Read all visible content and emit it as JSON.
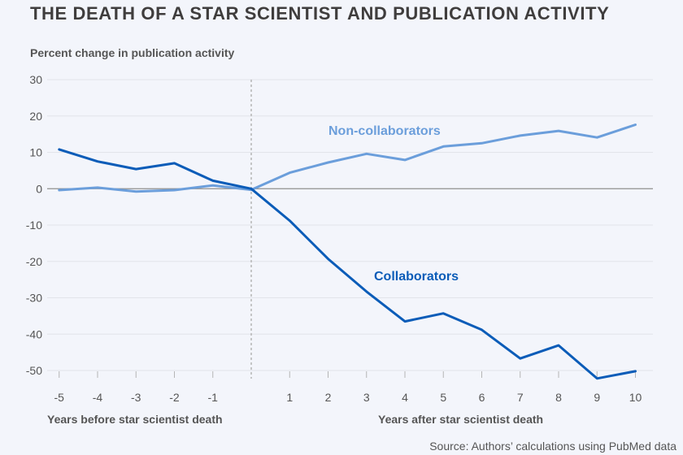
{
  "chart_data": {
    "type": "line",
    "title": "THE DEATH OF A STAR SCIENTIST AND PUBLICATION ACTIVITY",
    "ylabel": "Percent change in publication activity",
    "xlabel_left": "Years before star scientist death",
    "xlabel_right": "Years after star scientist death",
    "source": "Source: Authors’ calculations using PubMed data",
    "ylim": [
      -50,
      30
    ],
    "xlim": [
      -5,
      10
    ],
    "y_ticks": [
      30,
      20,
      10,
      0,
      -10,
      -20,
      -30,
      -40,
      -50
    ],
    "x_ticks": [
      -5,
      -4,
      -3,
      -2,
      -1,
      1,
      2,
      3,
      4,
      5,
      6,
      7,
      8,
      9,
      10
    ],
    "grid": true,
    "reference_line_x": 0,
    "x": [
      -5,
      -4,
      -3,
      -2,
      -1,
      0,
      1,
      2,
      3,
      4,
      5,
      6,
      7,
      8,
      9,
      10
    ],
    "series": [
      {
        "name": "Non-collaborators",
        "color": "#6b9edb",
        "values": [
          -0.4,
          0.3,
          -0.8,
          -0.4,
          0.9,
          -0.3,
          4.4,
          7.2,
          9.6,
          7.9,
          11.6,
          12.5,
          14.6,
          15.9,
          14.1,
          17.6
        ]
      },
      {
        "name": "Collaborators",
        "color": "#0b5cb8",
        "values": [
          10.8,
          7.5,
          5.4,
          7.0,
          2.2,
          0,
          -8.8,
          -19.3,
          -28.3,
          -36.5,
          -34.3,
          -38.8,
          -46.7,
          -43.1,
          -52.2,
          -50.2
        ]
      }
    ]
  }
}
